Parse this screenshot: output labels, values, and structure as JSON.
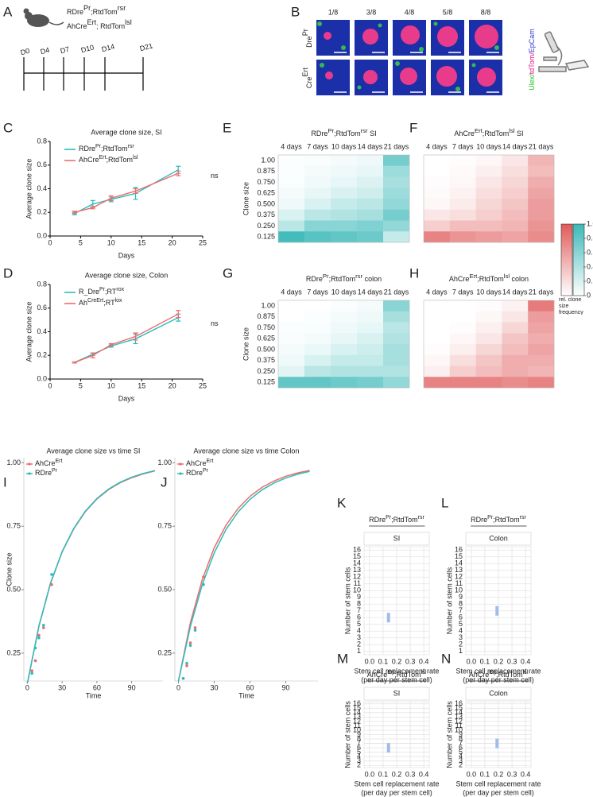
{
  "panel_a": {
    "label": "A",
    "mouse_lines": [
      [
        "RDre",
        "Pr",
        ";RtdTom",
        "rsr"
      ],
      [
        "AhCre",
        "Ert",
        "; RtdTom",
        "lsl"
      ]
    ],
    "days": [
      "D0",
      "D4",
      "D7",
      "D10",
      "D14",
      "D21"
    ]
  },
  "panel_b": {
    "label": "B",
    "columns": [
      "1/8",
      "3/8",
      "4/8",
      "5/8",
      "8/8"
    ],
    "rows": [
      [
        "Dre",
        "Pr"
      ],
      [
        "Cre",
        "Ert"
      ]
    ],
    "stain": [
      "Ulex/",
      "tdTom/",
      "EpCam"
    ],
    "stain_colors": [
      "#22c022",
      "#e0218a",
      "#2c3cd8"
    ]
  },
  "colorbar": {
    "ticks": [
      0,
      0.2,
      0.4,
      0.6,
      0.8,
      {
        "value": 1,
        "label": "1.0"
      }
    ],
    "label": "rel. clone size frequency",
    "colors": [
      "#e05a5a",
      "#3bb8b8"
    ]
  },
  "chart_data": [
    {
      "type": "line",
      "label": "C",
      "title": "Average clone size, SI",
      "xlabel": "Days",
      "ylabel": "Average clone size",
      "annotation": "ns",
      "x": [
        4,
        7,
        10,
        14,
        21
      ],
      "xlim": [
        0,
        25
      ],
      "xticks": [
        0,
        5,
        10,
        15,
        20,
        25
      ],
      "ylim": [
        0,
        0.8
      ],
      "yticks": [
        {
          "value": 0,
          "label": "0.0"
        },
        0.2,
        0.4,
        0.6,
        0.8
      ],
      "series": [
        {
          "name": [
            "RDre",
            "Pr",
            ";RtdTom",
            "rsr"
          ],
          "color": "#2bbcbc",
          "values": [
            0.19,
            0.27,
            0.31,
            0.36,
            0.56
          ],
          "errors": [
            0.01,
            0.03,
            0.02,
            0.05,
            0.03
          ]
        },
        {
          "name": [
            "AhCre",
            "Ert",
            ";RtdTom",
            "lsl"
          ],
          "color": "#f06a6a",
          "values": [
            0.2,
            0.24,
            0.32,
            0.38,
            0.53
          ],
          "errors": [
            0.01,
            0.01,
            0.02,
            0.02,
            0.02
          ]
        }
      ]
    },
    {
      "type": "line",
      "label": "D",
      "title": "Average clone size, Colon",
      "xlabel": "Days",
      "ylabel": "Average clone size",
      "annotation": "ns",
      "x": [
        4,
        7,
        10,
        14,
        21
      ],
      "xlim": [
        0,
        25
      ],
      "xticks": [
        0,
        5,
        10,
        15,
        20,
        25
      ],
      "ylim": [
        0,
        0.8
      ],
      "yticks": [
        {
          "value": 0,
          "label": "0.0"
        },
        0.2,
        0.4,
        0.6,
        0.8
      ],
      "series": [
        {
          "name": [
            "R_Dre",
            "Pr",
            ";RT",
            "rox"
          ],
          "color": "#2bbcbc",
          "values": [
            0.14,
            0.21,
            0.28,
            0.34,
            0.52
          ],
          "errors": [
            0.005,
            0.01,
            0.01,
            0.04,
            0.03
          ]
        },
        {
          "name": [
            "Ah",
            "CreErt",
            ";RT",
            "lox"
          ],
          "color": "#f06a6a",
          "values": [
            0.14,
            0.2,
            0.29,
            0.36,
            0.55
          ],
          "errors": [
            0.005,
            0.02,
            0.01,
            0.03,
            0.03
          ]
        }
      ]
    },
    {
      "type": "heatmap",
      "label": "E",
      "title": [
        "RDre",
        "Pr",
        ";RtdTom",
        "rsr",
        " SI"
      ],
      "color": "#3bb8b8",
      "ylabel": "Clone size",
      "x_categories": [
        "4 days",
        "7 days",
        "10 days",
        "14 days",
        "21 days"
      ],
      "y_categories": [
        "1.00",
        "0.875",
        "0.750",
        "0.625",
        "0.500",
        "0.375",
        "0.250",
        "0.125"
      ],
      "values": [
        [
          0.02,
          0.03,
          0.05,
          0.08,
          0.7
        ],
        [
          0.02,
          0.05,
          0.08,
          0.12,
          0.5
        ],
        [
          0.03,
          0.07,
          0.12,
          0.18,
          0.45
        ],
        [
          0.05,
          0.12,
          0.2,
          0.25,
          0.5
        ],
        [
          0.08,
          0.2,
          0.3,
          0.35,
          0.55
        ],
        [
          0.2,
          0.35,
          0.4,
          0.45,
          0.7
        ],
        [
          0.35,
          0.6,
          0.6,
          0.65,
          0.55
        ],
        [
          0.95,
          0.85,
          0.8,
          0.75,
          0.3
        ]
      ]
    },
    {
      "type": "heatmap",
      "label": "F",
      "title": [
        "AhCre",
        "Ert",
        ";RtdTom",
        "lsl",
        " SI"
      ],
      "color": "#e05a5a",
      "x_categories": [
        "4 days",
        "7 days",
        "10 days",
        "14 days",
        "21 days"
      ],
      "values": [
        [
          0,
          0.02,
          0.05,
          0.15,
          0.45
        ],
        [
          0,
          0.03,
          0.1,
          0.2,
          0.4
        ],
        [
          0.02,
          0.05,
          0.15,
          0.25,
          0.5
        ],
        [
          0.03,
          0.08,
          0.2,
          0.3,
          0.55
        ],
        [
          0.05,
          0.12,
          0.25,
          0.35,
          0.6
        ],
        [
          0.15,
          0.2,
          0.3,
          0.4,
          0.6
        ],
        [
          0.3,
          0.4,
          0.4,
          0.45,
          0.65
        ],
        [
          0.75,
          0.65,
          0.6,
          0.55,
          0.7
        ]
      ]
    },
    {
      "type": "heatmap",
      "label": "G",
      "title": [
        "RDre",
        "Pr",
        ";RtdTom",
        "rsr",
        " colon"
      ],
      "color": "#3bb8b8",
      "ylabel": "Clone size",
      "x_categories": [
        "4 days",
        "7 days",
        "10 days",
        "14 days",
        "21 days"
      ],
      "y_categories": [
        "1.00",
        "0.875",
        "0.750",
        "0.625",
        "0.500",
        "0.375",
        "0.250",
        "0.125"
      ],
      "values": [
        [
          0,
          0,
          0.02,
          0.05,
          0.6
        ],
        [
          0,
          0.02,
          0.05,
          0.08,
          0.45
        ],
        [
          0.02,
          0.03,
          0.08,
          0.12,
          0.35
        ],
        [
          0.03,
          0.05,
          0.12,
          0.2,
          0.4
        ],
        [
          0.05,
          0.1,
          0.2,
          0.25,
          0.45
        ],
        [
          0.08,
          0.2,
          0.3,
          0.3,
          0.45
        ],
        [
          0.15,
          0.35,
          0.4,
          0.4,
          0.4
        ],
        [
          0.8,
          0.8,
          0.75,
          0.7,
          0.55
        ]
      ]
    },
    {
      "type": "heatmap",
      "label": "H",
      "title": [
        "AhCre",
        "Ert",
        ";RtdTom",
        "lsl",
        " colon"
      ],
      "color": "#e05a5a",
      "x_categories": [
        "4 days",
        "7 days",
        "10 days",
        "14 days",
        "21 days"
      ],
      "values": [
        [
          0,
          0,
          0.02,
          0.08,
          0.8
        ],
        [
          0,
          0,
          0.05,
          0.15,
          0.6
        ],
        [
          0,
          0.02,
          0.1,
          0.25,
          0.55
        ],
        [
          0,
          0.05,
          0.15,
          0.35,
          0.5
        ],
        [
          0.02,
          0.1,
          0.25,
          0.4,
          0.55
        ],
        [
          0.05,
          0.2,
          0.35,
          0.5,
          0.5
        ],
        [
          0.1,
          0.3,
          0.4,
          0.5,
          0.45
        ],
        [
          0.75,
          0.75,
          0.75,
          0.7,
          0.75
        ]
      ]
    },
    {
      "type": "scatter",
      "label": "I",
      "title": "Average clone size vs time SI",
      "xlabel": "Time",
      "ylabel": "Clone size",
      "xlim": [
        -3,
        117
      ],
      "xticks": [
        0,
        30,
        60,
        90
      ],
      "ylim": [
        0.14,
        1.02
      ],
      "yticks": [
        0.25,
        {
          "value": 0.5,
          "label": "0.50"
        },
        0.75,
        {
          "value": 1,
          "label": "1.00"
        }
      ],
      "series": [
        {
          "name": [
            "AhCre",
            "Ert"
          ],
          "color": "#f06a6a",
          "x": [
            4,
            7,
            10,
            14,
            21
          ],
          "values": [
            0.18,
            0.22,
            0.32,
            0.35,
            0.52
          ]
        },
        {
          "name": [
            "RDre",
            "Pr"
          ],
          "color": "#2bbcbc",
          "x": [
            4,
            7,
            10,
            14,
            21
          ],
          "values": [
            0.17,
            0.27,
            0.31,
            0.36,
            0.56
          ]
        }
      ],
      "fits": [
        {
          "color": "#f06a6a",
          "x": [
            0,
            10,
            20,
            30,
            40,
            50,
            60,
            70,
            80,
            90,
            100,
            110
          ],
          "values": [
            0.13,
            0.355,
            0.524,
            0.648,
            0.739,
            0.807,
            0.857,
            0.894,
            0.921,
            0.941,
            0.956,
            0.968
          ]
        },
        {
          "color": "#2bbcbc",
          "x": [
            0,
            10,
            20,
            30,
            40,
            50,
            60,
            70,
            80,
            90,
            100,
            110
          ],
          "values": [
            0.13,
            0.357,
            0.526,
            0.65,
            0.741,
            0.809,
            0.859,
            0.896,
            0.923,
            0.943,
            0.958,
            0.969
          ]
        }
      ]
    },
    {
      "type": "scatter",
      "label": "J",
      "title": "Average clone size vs time Colon",
      "xlabel": "Time",
      "xlim": [
        -3,
        117
      ],
      "xticks": [
        0,
        30,
        60,
        90
      ],
      "ylim": [
        0.14,
        1.02
      ],
      "yticks": [
        0.25,
        {
          "value": 0.5,
          "label": "0.50"
        },
        0.75,
        {
          "value": 1,
          "label": "1.00"
        }
      ],
      "series": [
        {
          "name": [
            "AhCre",
            "Ert"
          ],
          "color": "#f06a6a",
          "x": [
            4,
            7,
            10,
            14,
            21
          ],
          "values": [
            0.15,
            0.2,
            0.29,
            0.35,
            0.55
          ]
        },
        {
          "name": [
            "RDre",
            "Pr"
          ],
          "color": "#2bbcbc",
          "x": [
            4,
            7,
            10,
            14,
            21
          ],
          "values": [
            0.15,
            0.21,
            0.28,
            0.34,
            0.52
          ]
        }
      ],
      "fits": [
        {
          "color": "#f06a6a",
          "x": [
            0,
            10,
            20,
            30,
            40,
            50,
            60,
            70,
            80,
            90,
            100,
            110
          ],
          "values": [
            0.14,
            0.37,
            0.54,
            0.665,
            0.755,
            0.82,
            0.868,
            0.903,
            0.928,
            0.947,
            0.96,
            0.97
          ]
        },
        {
          "color": "#2bbcbc",
          "x": [
            0,
            10,
            20,
            30,
            40,
            50,
            60,
            70,
            80,
            90,
            100,
            110
          ],
          "values": [
            0.14,
            0.355,
            0.52,
            0.645,
            0.738,
            0.806,
            0.856,
            0.893,
            0.92,
            0.94,
            0.955,
            0.966
          ]
        }
      ]
    },
    {
      "type": "tile",
      "label": "K",
      "title": [
        "RDre",
        "Pr",
        ";RtdTom",
        "rsr"
      ],
      "subtitle": "SI",
      "color": "#9fbde6",
      "xlabel": [
        "Stem cell replacement rate",
        "(per day per stem cell)"
      ],
      "ylabel": "Number of stem cells",
      "xlim": [
        -0.04,
        0.44
      ],
      "xticks": [
        {
          "value": 0,
          "label": "0.0"
        },
        0.1,
        0.2,
        0.3,
        0.4
      ],
      "ylim": [
        0.5,
        16.5
      ],
      "yticks": [
        1,
        2,
        3,
        4,
        5,
        6,
        7,
        8,
        9,
        10,
        11,
        12,
        13,
        14,
        15,
        16
      ],
      "x": [
        0.14
      ],
      "values": [
        6
      ]
    },
    {
      "type": "tile",
      "label": "L",
      "title": [
        "RDre",
        "Pr",
        ";RtdTom",
        "rsr"
      ],
      "subtitle": "Colon",
      "color": "#9fbde6",
      "xlabel": [
        "Stem cell replacement rate",
        "(per day per stem cell)"
      ],
      "ylabel": "Number of stem cells",
      "xlim": [
        -0.04,
        0.44
      ],
      "xticks": [
        {
          "value": 0,
          "label": "0.0"
        },
        0.1,
        0.2,
        0.3,
        0.4
      ],
      "ylim": [
        0.5,
        16.5
      ],
      "yticks": [
        1,
        2,
        3,
        4,
        5,
        6,
        7,
        8,
        9,
        10,
        11,
        12,
        13,
        14,
        15,
        16
      ],
      "x": [
        0.19
      ],
      "values": [
        7
      ]
    },
    {
      "type": "tile",
      "label": "M",
      "title": [
        "AhCre",
        "Ert",
        ";RtdTom",
        "lsl"
      ],
      "subtitle": "SI",
      "color": "#9fbde6",
      "xlabel": [
        "Stem cell replacement rate",
        "(per day per stem cell)"
      ],
      "ylabel": "Number of stem cells",
      "xlim": [
        -0.04,
        0.44
      ],
      "xticks": [
        {
          "value": 0,
          "label": "0.0"
        },
        0.1,
        0.2,
        0.3,
        0.4
      ],
      "ylim": [
        1.5,
        16.5
      ],
      "yticks": [
        2,
        3,
        4,
        5,
        6,
        7,
        8,
        9,
        10,
        11,
        12,
        13,
        14,
        15,
        16
      ],
      "x": [
        0.14
      ],
      "values": [
        6
      ]
    },
    {
      "type": "tile",
      "label": "N",
      "title": [
        "AhCre",
        "Ert",
        ";RtdTom",
        "lsl"
      ],
      "subtitle": "Colon",
      "color": "#9fbde6",
      "xlabel": [
        "Stem cell replacement rate",
        "(per day per stem cell)"
      ],
      "ylabel": "Number of stem cells",
      "xlim": [
        -0.04,
        0.44
      ],
      "xticks": [
        {
          "value": 0,
          "label": "0.0"
        },
        0.1,
        0.2,
        0.3,
        0.4
      ],
      "ylim": [
        1.5,
        16.5
      ],
      "yticks": [
        2,
        3,
        4,
        5,
        6,
        7,
        8,
        9,
        10,
        11,
        12,
        13,
        14,
        15,
        16
      ],
      "x": [
        0.19
      ],
      "values": [
        7
      ]
    }
  ]
}
